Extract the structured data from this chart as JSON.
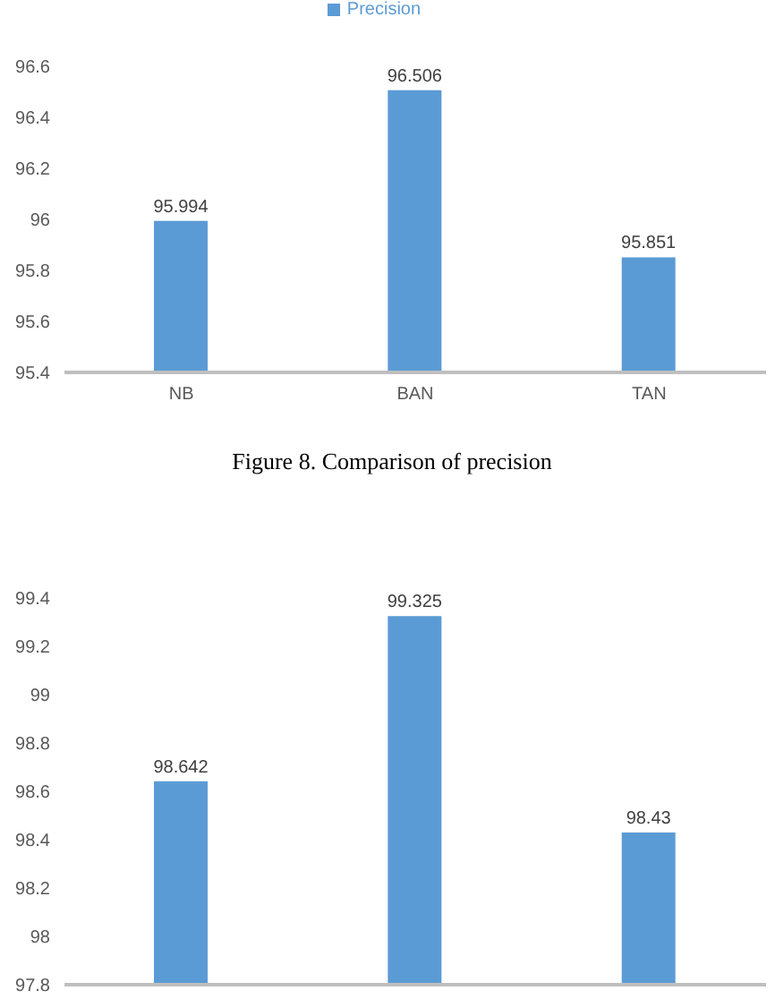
{
  "chart_data": [
    {
      "type": "bar",
      "categories": [
        "NB",
        "BAN",
        "TAN"
      ],
      "series": [
        {
          "name": "Precision",
          "color": "#5b9bd5",
          "values": [
            95.994,
            96.506,
            95.851
          ]
        }
      ],
      "ylim": [
        95.4,
        96.6
      ],
      "yticks": [
        95.4,
        95.6,
        95.8,
        96,
        96.2,
        96.4,
        96.6
      ],
      "data_labels": true,
      "legend": "top",
      "annotations": [
        "Figure 8. Comparison of precision"
      ]
    },
    {
      "type": "bar",
      "categories": [
        null,
        null,
        null
      ],
      "values": [
        98.642,
        99.325,
        98.43
      ],
      "color": "#5b9bd5",
      "ylim": [
        97.8,
        99.4
      ],
      "yticks": [
        97.8,
        98,
        98.2,
        98.4,
        98.6,
        98.8,
        99,
        99.2,
        99.4
      ],
      "data_labels": true
    }
  ]
}
